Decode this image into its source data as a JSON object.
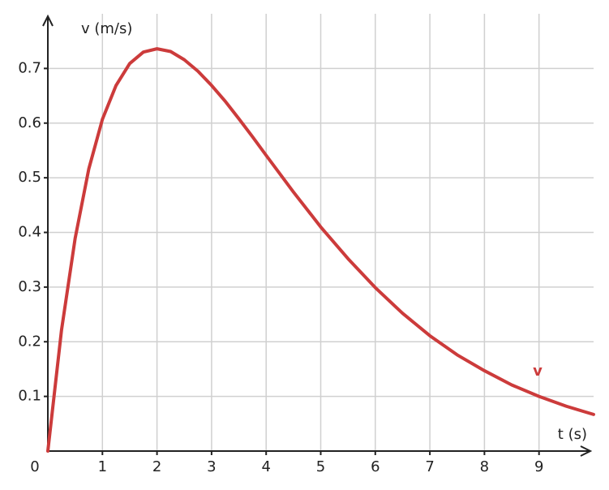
{
  "chart_data": {
    "type": "line",
    "x_label": "t (s)",
    "y_label": "v (m/s)",
    "x": [
      0,
      0.25,
      0.5,
      0.75,
      1,
      1.25,
      1.5,
      1.75,
      2,
      2.25,
      2.5,
      2.75,
      3,
      3.25,
      3.5,
      3.75,
      4,
      4.5,
      5,
      5.5,
      6,
      6.5,
      7,
      7.5,
      8,
      8.5,
      9,
      9.5,
      10
    ],
    "series": [
      {
        "name": "v",
        "color": "#cc3b3b",
        "values": [
          0,
          0.221,
          0.389,
          0.516,
          0.607,
          0.669,
          0.709,
          0.73,
          0.736,
          0.731,
          0.716,
          0.695,
          0.669,
          0.64,
          0.608,
          0.575,
          0.541,
          0.474,
          0.41,
          0.352,
          0.299,
          0.252,
          0.211,
          0.176,
          0.147,
          0.121,
          0.1,
          0.082,
          0.067
        ]
      }
    ],
    "xlim": [
      0,
      10
    ],
    "ylim": [
      0,
      0.8
    ],
    "xticks": [
      0,
      1,
      2,
      3,
      4,
      5,
      6,
      7,
      8,
      9
    ],
    "yticks": [
      0.1,
      0.2,
      0.3,
      0.4,
      0.5,
      0.6,
      0.7
    ],
    "grid": true
  }
}
